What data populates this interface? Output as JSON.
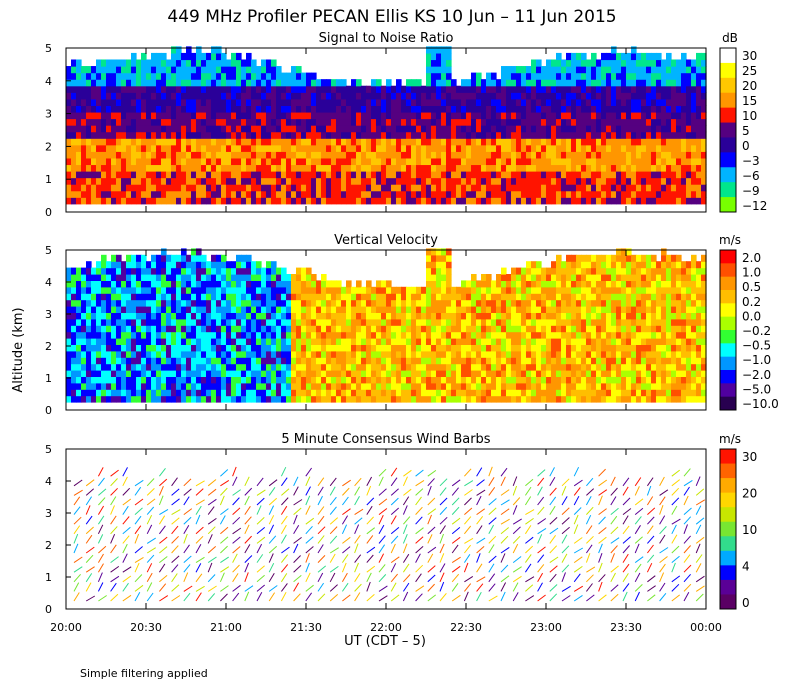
{
  "header": {
    "title": "449 MHz Profiler PECAN Ellis KS 10 Jun – 11 Jun 2015",
    "y_label": "Altitude (km)",
    "x_label": "UT  (CDT – 5)",
    "note": "Simple filtering applied"
  },
  "x_ticks": [
    "20:00",
    "20:30",
    "21:00",
    "21:30",
    "22:00",
    "22:30",
    "23:00",
    "23:30",
    "00:00"
  ],
  "y_ticks": [
    "0",
    "1",
    "2",
    "3",
    "4",
    "5"
  ],
  "chart_data": [
    {
      "type": "heatmap",
      "title": "Signal to Noise Ratio",
      "colorbar_unit": "dB",
      "colorbar_labels": [
        "30",
        "25",
        "20",
        "15",
        "10",
        "5",
        "0",
        "−3",
        "−6",
        "−9",
        "−12"
      ],
      "colorbar_colors": [
        "#ffffff",
        "#ffff00",
        "#ffc800",
        "#ff9600",
        "#ff1400",
        "#550080",
        "#2a0099",
        "#0000ff",
        "#00b4ff",
        "#00e68c",
        "#78ff00"
      ],
      "x_range": [
        "20:00",
        "00:00"
      ],
      "ylim": [
        0,
        5
      ]
    },
    {
      "type": "heatmap",
      "title": "Vertical Velocity",
      "colorbar_unit": "m/s",
      "colorbar_labels": [
        "2.0",
        "1.0",
        "0.5",
        "0.2",
        "0.0",
        "−0.2",
        "−0.5",
        "−1.0",
        "−2.0",
        "−5.0",
        "−10.0"
      ],
      "colorbar_colors": [
        "#ff0000",
        "#ff5000",
        "#ff9600",
        "#ffbe00",
        "#ffff00",
        "#aaff00",
        "#32ff32",
        "#00ffff",
        "#0096ff",
        "#0000ff",
        "#5000a0",
        "#280050"
      ],
      "x_range": [
        "20:00",
        "00:00"
      ],
      "ylim": [
        0,
        5
      ]
    },
    {
      "type": "scatter",
      "title": "5 Minute Consensus Wind Barbs",
      "colorbar_unit": "m/s",
      "colorbar_labels": [
        "30",
        "20",
        "10",
        "4",
        "0"
      ],
      "colorbar_colors": [
        "#ff1400",
        "#ff6400",
        "#ffaa00",
        "#ffd700",
        "#c8e600",
        "#78e632",
        "#32dc8c",
        "#00aaff",
        "#0000ff",
        "#5a0096",
        "#5a0064"
      ],
      "x_range": [
        "20:00",
        "00:00"
      ],
      "ylim": [
        0,
        5
      ]
    }
  ]
}
